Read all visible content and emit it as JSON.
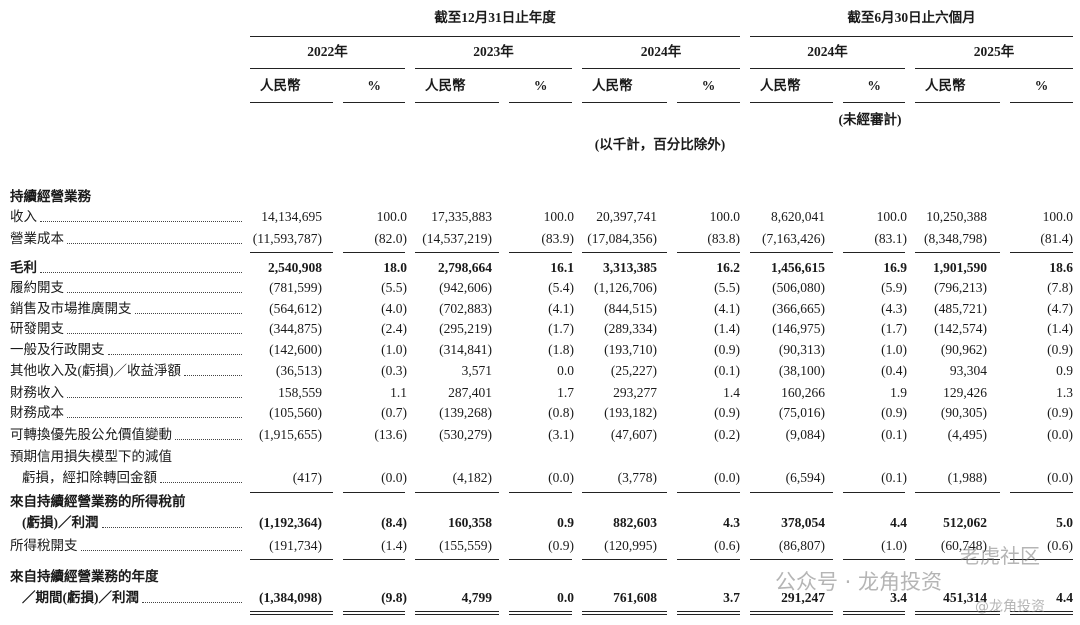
{
  "header": {
    "period_groups": [
      "截至12月31日止年度",
      "截至6月30日止六個月"
    ],
    "years": [
      "2022年",
      "2023年",
      "2024年",
      "2024年",
      "2025年"
    ],
    "sub_headers": [
      [
        "人民幣",
        "%"
      ],
      [
        "人民幣",
        "%"
      ],
      [
        "人民幣",
        "%"
      ],
      [
        "人民幣",
        "%"
      ],
      [
        "人民幣",
        "%"
      ]
    ],
    "unaudited": "(未經審計)",
    "unit_note": "(以千計，百分比除外)"
  },
  "section": "持續經營業務",
  "rows": [
    {
      "label": [
        "收入"
      ],
      "bold": false,
      "values": [
        "14,134,695",
        "100.0",
        "17,335,883",
        "100.0",
        "20,397,741",
        "100.0",
        "8,620,041",
        "100.0",
        "10,250,388",
        "100.0"
      ]
    },
    {
      "label": [
        "營業成本"
      ],
      "bold": false,
      "values": [
        "(11,593,787)",
        "(82.0)",
        "(14,537,219)",
        "(83.9)",
        "(17,084,356)",
        "(83.8)",
        "(7,163,426)",
        "(83.1)",
        "(8,348,798)",
        "(81.4)"
      ]
    },
    {
      "label": [
        "毛利"
      ],
      "bold": true,
      "values": [
        "2,540,908",
        "18.0",
        "2,798,664",
        "16.1",
        "3,313,385",
        "16.2",
        "1,456,615",
        "16.9",
        "1,901,590",
        "18.6"
      ]
    },
    {
      "label": [
        "履約開支"
      ],
      "bold": false,
      "values": [
        "(781,599)",
        "(5.5)",
        "(942,606)",
        "(5.4)",
        "(1,126,706)",
        "(5.5)",
        "(506,080)",
        "(5.9)",
        "(796,213)",
        "(7.8)"
      ]
    },
    {
      "label": [
        "銷售及市場推廣開支"
      ],
      "bold": false,
      "values": [
        "(564,612)",
        "(4.0)",
        "(702,883)",
        "(4.1)",
        "(844,515)",
        "(4.1)",
        "(366,665)",
        "(4.3)",
        "(485,721)",
        "(4.7)"
      ]
    },
    {
      "label": [
        "研發開支"
      ],
      "bold": false,
      "values": [
        "(344,875)",
        "(2.4)",
        "(295,219)",
        "(1.7)",
        "(289,334)",
        "(1.4)",
        "(146,975)",
        "(1.7)",
        "(142,574)",
        "(1.4)"
      ]
    },
    {
      "label": [
        "一般及行政開支"
      ],
      "bold": false,
      "values": [
        "(142,600)",
        "(1.0)",
        "(314,841)",
        "(1.8)",
        "(193,710)",
        "(0.9)",
        "(90,313)",
        "(1.0)",
        "(90,962)",
        "(0.9)"
      ]
    },
    {
      "label": [
        "其他收入及(虧損)／收益淨額"
      ],
      "bold": false,
      "values": [
        "(36,513)",
        "(0.3)",
        "3,571",
        "0.0",
        "(25,227)",
        "(0.1)",
        "(38,100)",
        "(0.4)",
        "93,304",
        "0.9"
      ]
    },
    {
      "label": [
        "財務收入"
      ],
      "bold": false,
      "values": [
        "158,559",
        "1.1",
        "287,401",
        "1.7",
        "293,277",
        "1.4",
        "160,266",
        "1.9",
        "129,426",
        "1.3"
      ]
    },
    {
      "label": [
        "財務成本"
      ],
      "bold": false,
      "values": [
        "(105,560)",
        "(0.7)",
        "(139,268)",
        "(0.8)",
        "(193,182)",
        "(0.9)",
        "(75,016)",
        "(0.9)",
        "(90,305)",
        "(0.9)"
      ]
    },
    {
      "label": [
        "可轉換優先股公允價值變動"
      ],
      "bold": false,
      "values": [
        "(1,915,655)",
        "(13.6)",
        "(530,279)",
        "(3.1)",
        "(47,607)",
        "(0.2)",
        "(9,084)",
        "(0.1)",
        "(4,495)",
        "(0.0)"
      ]
    },
    {
      "label": [
        "預期信用損失模型下的減值",
        "虧損，經扣除轉回金額"
      ],
      "bold": false,
      "values": [
        "(417)",
        "(0.0)",
        "(4,182)",
        "(0.0)",
        "(3,778)",
        "(0.0)",
        "(6,594)",
        "(0.1)",
        "(1,988)",
        "(0.0)"
      ]
    },
    {
      "label": [
        "來自持續經營業務的所得稅前",
        "(虧損)／利潤"
      ],
      "bold": true,
      "values": [
        "(1,192,364)",
        "(8.4)",
        "160,358",
        "0.9",
        "882,603",
        "4.3",
        "378,054",
        "4.4",
        "512,062",
        "5.0"
      ]
    },
    {
      "label": [
        "所得稅開支"
      ],
      "bold": false,
      "values": [
        "(191,734)",
        "(1.4)",
        "(155,559)",
        "(0.9)",
        "(120,995)",
        "(0.6)",
        "(86,807)",
        "(1.0)",
        "(60,748)",
        "(0.6)"
      ]
    },
    {
      "label": [
        "來自持續經營業務的年度",
        "／期間(虧損)／利潤"
      ],
      "bold": true,
      "values": [
        "(1,384,098)",
        "(9.8)",
        "4,799",
        "0.0",
        "761,608",
        "3.7",
        "291,247",
        "3.4",
        "451,314",
        "4.4"
      ]
    }
  ],
  "watermark": [
    "公众号 · 龙角投资",
    "老虎社区",
    "@龙角投资"
  ]
}
